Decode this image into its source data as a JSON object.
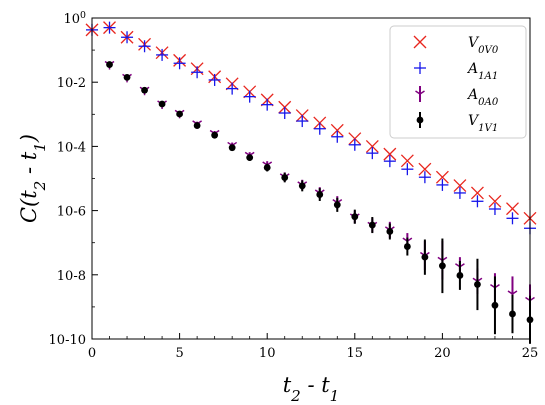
{
  "chart_data": {
    "type": "scatter",
    "xlabel": "t_2 - t_1",
    "ylabel": "C(t_2 - t_1)",
    "xlim": [
      0,
      25
    ],
    "ylim_log10": [
      -10,
      0
    ],
    "yscale": "log",
    "grid": false,
    "legend_position": "top-right",
    "x_ticks": [
      0,
      5,
      10,
      15,
      20,
      25
    ],
    "x_tick_labels": [
      "0",
      "5",
      "10",
      "15",
      "20",
      "25"
    ],
    "y_ticks_log10": [
      0,
      -2,
      -4,
      -6,
      -8,
      -10
    ],
    "y_tick_labels": [
      "10^0",
      "10^-2",
      "10^-4",
      "10^-6",
      "10^-8",
      "10^-10"
    ],
    "series": [
      {
        "name": "V_0V_0",
        "marker": "x",
        "color": "#e8261e",
        "x": [
          0,
          1,
          2,
          3,
          4,
          5,
          6,
          7,
          8,
          9,
          10,
          11,
          12,
          13,
          14,
          15,
          16,
          17,
          18,
          19,
          20,
          21,
          22,
          23,
          24,
          25
        ],
        "log10_y": [
          -0.37,
          -0.3,
          -0.6,
          -0.82,
          -1.08,
          -1.32,
          -1.58,
          -1.83,
          -2.05,
          -2.3,
          -2.55,
          -2.78,
          -3.04,
          -3.27,
          -3.5,
          -3.76,
          -4.0,
          -4.24,
          -4.45,
          -4.71,
          -4.96,
          -5.22,
          -5.45,
          -5.71,
          -5.94,
          -6.24
        ]
      },
      {
        "name": "A_1A_1",
        "marker": "+",
        "color": "#1616ea",
        "x": [
          0,
          1,
          2,
          3,
          4,
          5,
          6,
          7,
          8,
          9,
          10,
          11,
          12,
          13,
          14,
          15,
          16,
          17,
          18,
          19,
          20,
          21,
          22,
          23,
          24,
          25
        ],
        "log10_y": [
          -0.37,
          -0.3,
          -0.6,
          -0.88,
          -1.15,
          -1.41,
          -1.69,
          -1.93,
          -2.2,
          -2.45,
          -2.7,
          -2.96,
          -3.21,
          -3.45,
          -3.7,
          -3.95,
          -4.21,
          -4.46,
          -4.71,
          -4.96,
          -5.2,
          -5.45,
          -5.71,
          -5.95,
          -6.24,
          -6.55
        ]
      },
      {
        "name": "A_0A_0",
        "marker": "tri_down",
        "color": "#800080",
        "x": [
          1,
          2,
          3,
          4,
          5,
          6,
          7,
          8,
          9,
          10,
          11,
          12,
          13,
          14,
          15,
          16,
          17,
          18,
          19,
          20,
          21,
          22,
          23,
          24,
          25
        ],
        "log10_y": [
          -1.45,
          -1.85,
          -2.25,
          -2.68,
          -2.97,
          -3.3,
          -3.6,
          -3.97,
          -4.28,
          -4.58,
          -4.95,
          -5.2,
          -5.45,
          -5.75,
          -6.2,
          -6.46,
          -6.6,
          -6.95,
          -7.4,
          -7.55,
          -7.75,
          -8.2,
          -8.4,
          -8.6,
          -8.8
        ],
        "log10_err": [
          0.05,
          0.05,
          0.05,
          0.05,
          0.06,
          0.07,
          0.08,
          0.09,
          0.1,
          0.12,
          0.14,
          0.16,
          0.18,
          0.2,
          0.2,
          0.22,
          0.25,
          0.25,
          0.45,
          0.6,
          0.3,
          0.4,
          0.45,
          0.55,
          0.5
        ]
      },
      {
        "name": "V_1V_1",
        "marker": "o",
        "color": "#000000",
        "x": [
          1,
          2,
          3,
          4,
          5,
          6,
          7,
          8,
          9,
          10,
          11,
          12,
          13,
          14,
          15,
          16,
          17,
          18,
          19,
          20,
          21,
          22,
          23,
          24,
          25
        ],
        "log10_y": [
          -1.45,
          -1.85,
          -2.25,
          -2.68,
          -2.99,
          -3.35,
          -3.65,
          -4.04,
          -4.35,
          -4.66,
          -4.97,
          -5.23,
          -5.5,
          -5.82,
          -6.19,
          -6.45,
          -6.65,
          -7.12,
          -7.45,
          -7.72,
          -8.02,
          -8.3,
          -8.95,
          -9.22,
          -9.4
        ],
        "log10_err": [
          0.05,
          0.05,
          0.05,
          0.05,
          0.06,
          0.07,
          0.08,
          0.09,
          0.1,
          0.12,
          0.15,
          0.17,
          0.2,
          0.22,
          0.22,
          0.25,
          0.25,
          0.28,
          0.55,
          0.85,
          0.45,
          0.8,
          0.9,
          0.6,
          0.75
        ]
      }
    ]
  }
}
